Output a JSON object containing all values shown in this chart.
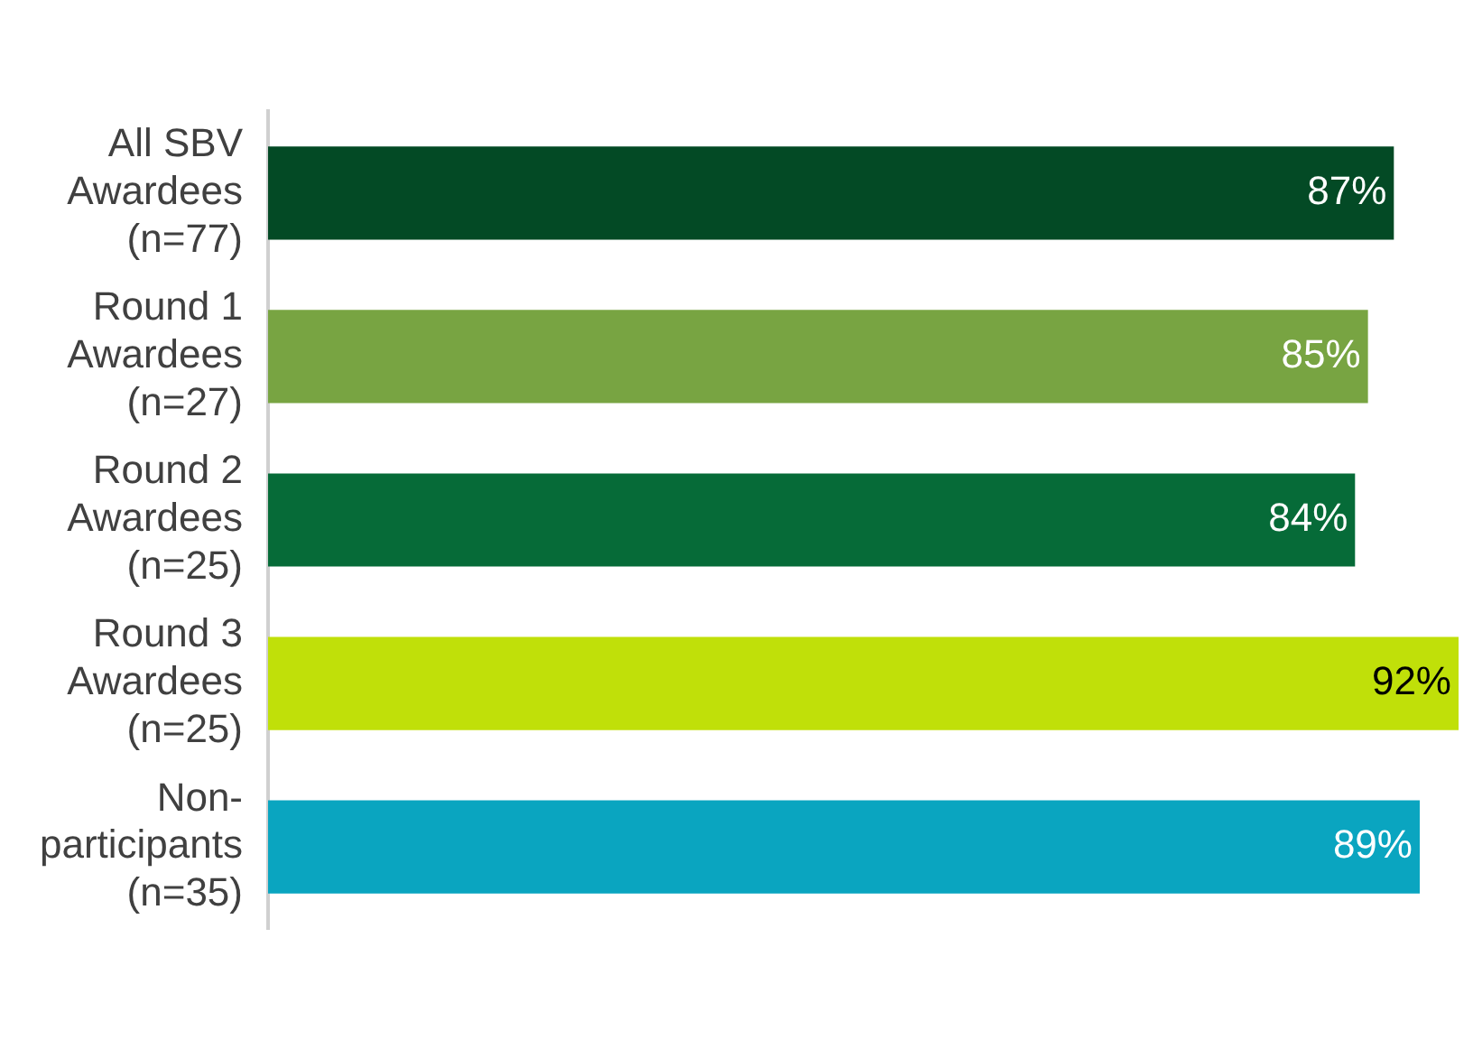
{
  "chart_data": {
    "type": "bar",
    "orientation": "horizontal",
    "categories": [
      "All SBV\nAwardees\n(n=77)",
      "Round 1\nAwardees\n(n=27)",
      "Round 2\nAwardees\n(n=25)",
      "Round 3\nAwardees\n(n=25)",
      "Non-\nparticipants\n(n=35)"
    ],
    "values": [
      87,
      85,
      84,
      92,
      89
    ],
    "colors": [
      "#034a25",
      "#78a442",
      "#066b38",
      "#c0e009",
      "#0aa5c0"
    ],
    "value_labels": [
      "87%",
      "85%",
      "84%",
      "92%",
      "89%"
    ],
    "grid": false,
    "legend": false
  }
}
